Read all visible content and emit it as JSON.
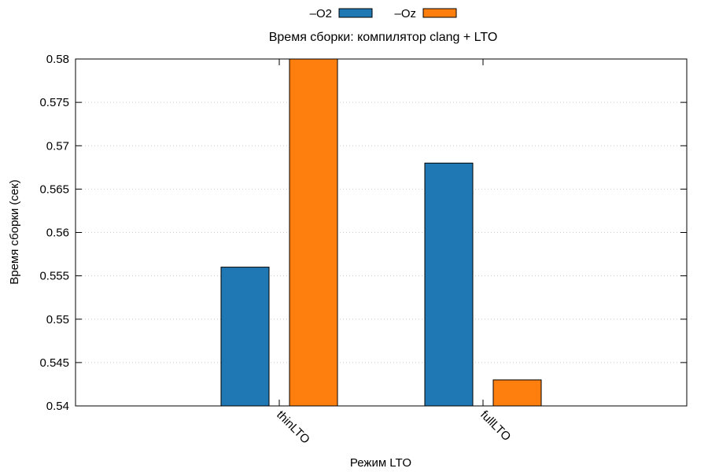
{
  "chart_data": {
    "type": "bar",
    "title": "Время сборки: компилятор clang + LTO",
    "xlabel": "Режим LTO",
    "ylabel": "Время сборки (сек)",
    "categories": [
      "thinLTO",
      "fullLTO"
    ],
    "series": [
      {
        "name": "–O2",
        "color": "#1f77b4",
        "values": [
          0.556,
          0.568
        ]
      },
      {
        "name": "–Oz",
        "color": "#ff7f0e",
        "values": [
          0.58,
          0.543
        ]
      }
    ],
    "ylim": [
      0.54,
      0.58
    ],
    "yticks": [
      "0.54",
      "0.545",
      "0.55",
      "0.555",
      "0.56",
      "0.565",
      "0.57",
      "0.575",
      "0.58"
    ],
    "grid": true,
    "legend": "top"
  }
}
